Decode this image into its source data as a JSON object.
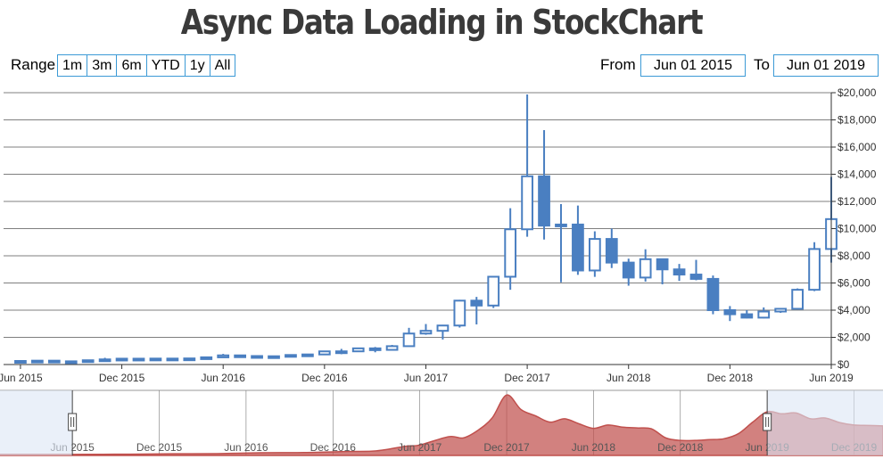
{
  "title": "Async Data Loading in StockChart",
  "range_selector": {
    "label": "Range",
    "buttons": [
      "1m",
      "3m",
      "6m",
      "YTD",
      "1y",
      "All"
    ],
    "from_label": "From",
    "from_value": "Jun 01 2015",
    "to_label": "To",
    "to_value": "Jun 01 2019"
  },
  "colors": {
    "candle": "#4a7fc1",
    "grid": "#555555",
    "navigator_area": "#c0504d",
    "navigator_mask": "#dce6f5",
    "input_border": "#3c9ad6"
  },
  "chart_data": {
    "type": "candlestick",
    "x_start": "2015-05",
    "x_end": "2019-06",
    "y_axis": {
      "position": "right",
      "min": 0,
      "max": 20000,
      "interval": 2000,
      "labels": [
        "$0",
        "$2,000",
        "$4,000",
        "$6,000",
        "$8,000",
        "$10,000",
        "$12,000",
        "$14,000",
        "$16,000",
        "$18,000",
        "$20,000"
      ]
    },
    "x_axis": {
      "labels": [
        {
          "date": "2015-06",
          "text": "Jun 2015"
        },
        {
          "date": "2015-12",
          "text": "Dec 2015"
        },
        {
          "date": "2016-06",
          "text": "Jun 2016"
        },
        {
          "date": "2016-12",
          "text": "Dec 2016"
        },
        {
          "date": "2017-06",
          "text": "Jun 2017"
        },
        {
          "date": "2017-12",
          "text": "Dec 2017"
        },
        {
          "date": "2018-06",
          "text": "Jun 2018"
        },
        {
          "date": "2018-12",
          "text": "Dec 2018"
        },
        {
          "date": "2019-06",
          "text": "Jun 2019"
        }
      ]
    },
    "ohlc": [
      {
        "date": "2015-06",
        "o": 230,
        "h": 265,
        "l": 220,
        "c": 263
      },
      {
        "date": "2015-07",
        "o": 263,
        "h": 318,
        "l": 255,
        "c": 284
      },
      {
        "date": "2015-08",
        "o": 284,
        "h": 285,
        "l": 200,
        "c": 230
      },
      {
        "date": "2015-09",
        "o": 230,
        "h": 245,
        "l": 225,
        "c": 236
      },
      {
        "date": "2015-10",
        "o": 236,
        "h": 320,
        "l": 235,
        "c": 314
      },
      {
        "date": "2015-11",
        "o": 314,
        "h": 495,
        "l": 310,
        "c": 377
      },
      {
        "date": "2015-12",
        "o": 377,
        "h": 465,
        "l": 350,
        "c": 430
      },
      {
        "date": "2016-01",
        "o": 430,
        "h": 460,
        "l": 355,
        "c": 368
      },
      {
        "date": "2016-02",
        "o": 368,
        "h": 445,
        "l": 365,
        "c": 437
      },
      {
        "date": "2016-03",
        "o": 437,
        "h": 440,
        "l": 405,
        "c": 416
      },
      {
        "date": "2016-04",
        "o": 416,
        "h": 470,
        "l": 415,
        "c": 448
      },
      {
        "date": "2016-05",
        "o": 448,
        "h": 550,
        "l": 440,
        "c": 531
      },
      {
        "date": "2016-06",
        "o": 531,
        "h": 780,
        "l": 530,
        "c": 673
      },
      {
        "date": "2016-07",
        "o": 673,
        "h": 700,
        "l": 610,
        "c": 624
      },
      {
        "date": "2016-08",
        "o": 624,
        "h": 625,
        "l": 530,
        "c": 575
      },
      {
        "date": "2016-09",
        "o": 575,
        "h": 615,
        "l": 570,
        "c": 609
      },
      {
        "date": "2016-10",
        "o": 609,
        "h": 720,
        "l": 600,
        "c": 701
      },
      {
        "date": "2016-11",
        "o": 701,
        "h": 755,
        "l": 680,
        "c": 742
      },
      {
        "date": "2016-12",
        "o": 742,
        "h": 975,
        "l": 740,
        "c": 968
      },
      {
        "date": "2017-01",
        "o": 968,
        "h": 1150,
        "l": 760,
        "c": 970
      },
      {
        "date": "2017-02",
        "o": 970,
        "h": 1200,
        "l": 940,
        "c": 1190
      },
      {
        "date": "2017-03",
        "o": 1190,
        "h": 1290,
        "l": 900,
        "c": 1080
      },
      {
        "date": "2017-04",
        "o": 1080,
        "h": 1440,
        "l": 1080,
        "c": 1350
      },
      {
        "date": "2017-05",
        "o": 1350,
        "h": 2700,
        "l": 1350,
        "c": 2280
      },
      {
        "date": "2017-06",
        "o": 2280,
        "h": 2980,
        "l": 2190,
        "c": 2480
      },
      {
        "date": "2017-07",
        "o": 2480,
        "h": 2920,
        "l": 1840,
        "c": 2870
      },
      {
        "date": "2017-08",
        "o": 2870,
        "h": 4760,
        "l": 2720,
        "c": 4700
      },
      {
        "date": "2017-09",
        "o": 4700,
        "h": 4975,
        "l": 2950,
        "c": 4340
      },
      {
        "date": "2017-10",
        "o": 4340,
        "h": 6470,
        "l": 4160,
        "c": 6460
      },
      {
        "date": "2017-11",
        "o": 6460,
        "h": 11500,
        "l": 5500,
        "c": 9950
      },
      {
        "date": "2017-12",
        "o": 9950,
        "h": 19870,
        "l": 9400,
        "c": 13850
      },
      {
        "date": "2018-01",
        "o": 13850,
        "h": 17250,
        "l": 9200,
        "c": 10220
      },
      {
        "date": "2018-02",
        "o": 10220,
        "h": 11800,
        "l": 6050,
        "c": 10300
      },
      {
        "date": "2018-03",
        "o": 10300,
        "h": 11700,
        "l": 6600,
        "c": 6920
      },
      {
        "date": "2018-04",
        "o": 6920,
        "h": 9800,
        "l": 6450,
        "c": 9240
      },
      {
        "date": "2018-05",
        "o": 9240,
        "h": 10000,
        "l": 7100,
        "c": 7500
      },
      {
        "date": "2018-06",
        "o": 7500,
        "h": 7790,
        "l": 5800,
        "c": 6400
      },
      {
        "date": "2018-07",
        "o": 6400,
        "h": 8480,
        "l": 6100,
        "c": 7750
      },
      {
        "date": "2018-08",
        "o": 7750,
        "h": 7800,
        "l": 5900,
        "c": 7000
      },
      {
        "date": "2018-09",
        "o": 7000,
        "h": 7400,
        "l": 6150,
        "c": 6620
      },
      {
        "date": "2018-10",
        "o": 6620,
        "h": 7700,
        "l": 6200,
        "c": 6300
      },
      {
        "date": "2018-11",
        "o": 6300,
        "h": 6550,
        "l": 3700,
        "c": 4000
      },
      {
        "date": "2018-12",
        "o": 4000,
        "h": 4300,
        "l": 3200,
        "c": 3700
      },
      {
        "date": "2019-01",
        "o": 3700,
        "h": 4000,
        "l": 3400,
        "c": 3450
      },
      {
        "date": "2019-02",
        "o": 3450,
        "h": 4200,
        "l": 3400,
        "c": 3900
      },
      {
        "date": "2019-03",
        "o": 3900,
        "h": 4100,
        "l": 3800,
        "c": 4100
      },
      {
        "date": "2019-04",
        "o": 4100,
        "h": 5600,
        "l": 4050,
        "c": 5500
      },
      {
        "date": "2019-05",
        "o": 5500,
        "h": 9000,
        "l": 5400,
        "c": 8500
      },
      {
        "date": "2019-06",
        "o": 8500,
        "h": 13800,
        "l": 7500,
        "c": 10700
      }
    ],
    "navigator": {
      "type": "splineArea",
      "x_start": "2015-01",
      "x_end": "2020-02",
      "selection_start": "2015-06",
      "selection_end": "2019-06",
      "labels": [
        {
          "date": "2015-06",
          "text": "Jun 2015"
        },
        {
          "date": "2015-12",
          "text": "Dec 2015"
        },
        {
          "date": "2016-06",
          "text": "Jun 2016"
        },
        {
          "date": "2016-12",
          "text": "Dec 2016"
        },
        {
          "date": "2017-06",
          "text": "Jun 2017"
        },
        {
          "date": "2017-12",
          "text": "Dec 2017"
        },
        {
          "date": "2018-06",
          "text": "Jun 2018"
        },
        {
          "date": "2018-12",
          "text": "Dec 2018"
        },
        {
          "date": "2019-06",
          "text": "Jun 2019"
        },
        {
          "date": "2019-12",
          "text": "Dec 2019"
        }
      ],
      "values": [
        {
          "date": "2015-01",
          "v": 250
        },
        {
          "date": "2015-04",
          "v": 230
        },
        {
          "date": "2015-07",
          "v": 270
        },
        {
          "date": "2015-10",
          "v": 300
        },
        {
          "date": "2016-01",
          "v": 400
        },
        {
          "date": "2016-04",
          "v": 440
        },
        {
          "date": "2016-07",
          "v": 650
        },
        {
          "date": "2016-10",
          "v": 700
        },
        {
          "date": "2017-01",
          "v": 950
        },
        {
          "date": "2017-03",
          "v": 1100
        },
        {
          "date": "2017-05",
          "v": 2200
        },
        {
          "date": "2017-06",
          "v": 2500
        },
        {
          "date": "2017-08",
          "v": 4500
        },
        {
          "date": "2017-09",
          "v": 4200
        },
        {
          "date": "2017-10",
          "v": 6000
        },
        {
          "date": "2017-11",
          "v": 9000
        },
        {
          "date": "2017-12",
          "v": 14500
        },
        {
          "date": "2018-01",
          "v": 11000
        },
        {
          "date": "2018-02",
          "v": 9500
        },
        {
          "date": "2018-03",
          "v": 8000
        },
        {
          "date": "2018-04",
          "v": 8800
        },
        {
          "date": "2018-05",
          "v": 7600
        },
        {
          "date": "2018-06",
          "v": 6500
        },
        {
          "date": "2018-07",
          "v": 7300
        },
        {
          "date": "2018-08",
          "v": 6800
        },
        {
          "date": "2018-09",
          "v": 6600
        },
        {
          "date": "2018-10",
          "v": 6400
        },
        {
          "date": "2018-11",
          "v": 4200
        },
        {
          "date": "2018-12",
          "v": 3600
        },
        {
          "date": "2019-01",
          "v": 3600
        },
        {
          "date": "2019-02",
          "v": 3800
        },
        {
          "date": "2019-03",
          "v": 4000
        },
        {
          "date": "2019-04",
          "v": 5200
        },
        {
          "date": "2019-05",
          "v": 8000
        },
        {
          "date": "2019-06",
          "v": 10500
        },
        {
          "date": "2019-07",
          "v": 10000
        },
        {
          "date": "2019-08",
          "v": 10200
        },
        {
          "date": "2019-09",
          "v": 8800
        },
        {
          "date": "2019-10",
          "v": 9000
        },
        {
          "date": "2019-11",
          "v": 7900
        },
        {
          "date": "2019-12",
          "v": 7300
        },
        {
          "date": "2020-01",
          "v": 7200
        },
        {
          "date": "2020-02",
          "v": 7100
        }
      ]
    }
  }
}
